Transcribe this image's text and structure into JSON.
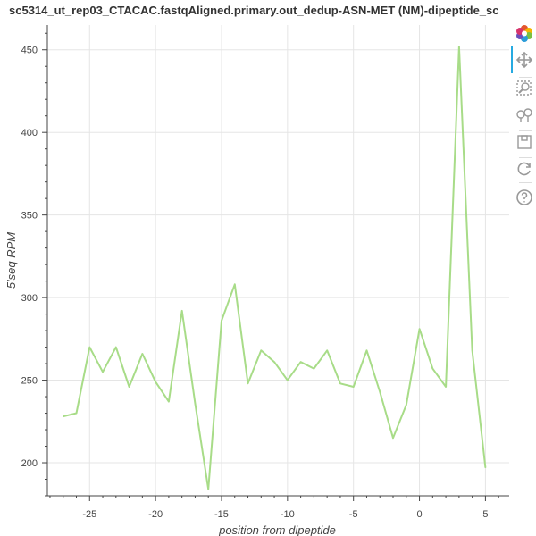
{
  "title": "sc5314_ut_rep03_CTACAC.fastqAligned.primary.out_dedup-ASN-MET (NM)-dipeptide_sc",
  "toolbar": {
    "items": [
      "bokeh-logo-icon",
      "pan-icon",
      "box-zoom-icon",
      "wheel-zoom-icon",
      "save-icon",
      "reset-icon",
      "help-icon"
    ]
  },
  "colors": {
    "line": "#a8dc88",
    "grid": "#e5e5e5",
    "axis": "#444444"
  },
  "chart_data": {
    "type": "line",
    "title": "sc5314_ut_rep03_CTACAC.fastqAligned.primary.out_dedup-ASN-MET (NM)-dipeptide_sc",
    "xlabel": "position from dipeptide",
    "ylabel": "5'seq RPM",
    "xlim": [
      -28.2,
      6.8
    ],
    "ylim": [
      180,
      465
    ],
    "xticks": [
      -25,
      -20,
      -15,
      -10,
      -5,
      0,
      5
    ],
    "xtick_labels": [
      "-25",
      "-20",
      "-15",
      "-10",
      "-5",
      "0",
      "5"
    ],
    "yticks": [
      200,
      250,
      300,
      350,
      400,
      450
    ],
    "ytick_labels": [
      "200",
      "250",
      "300",
      "350",
      "400",
      "450"
    ],
    "grid": true,
    "series": [
      {
        "x": [
          -27,
          -26,
          -25,
          -24,
          -23,
          -22,
          -21,
          -20,
          -19,
          -18,
          -17,
          -16,
          -15,
          -14,
          -13,
          -12,
          -11,
          -10,
          -9,
          -8,
          -7,
          -6,
          -5,
          -4,
          -3,
          -2,
          -1,
          0,
          1,
          2,
          3,
          4,
          5
        ],
        "values": [
          228,
          230,
          270,
          255,
          270,
          246,
          266,
          249,
          237,
          292,
          236,
          184,
          286,
          308,
          248,
          268,
          261,
          250,
          261,
          257,
          268,
          248,
          246,
          268,
          243,
          215,
          235,
          281,
          257,
          246,
          452,
          268,
          197
        ]
      }
    ]
  }
}
